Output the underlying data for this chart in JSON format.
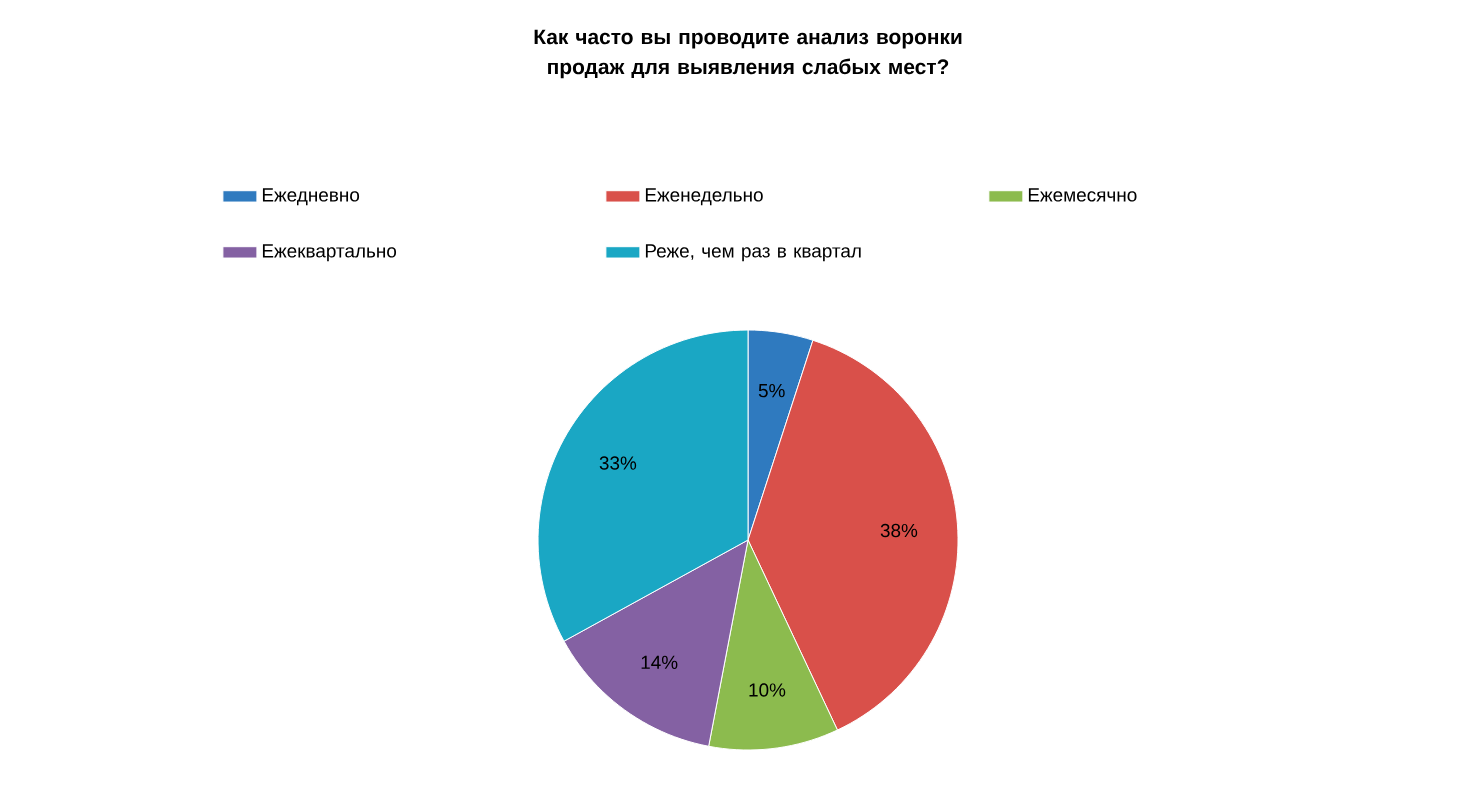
{
  "chart_data": {
    "type": "pie",
    "title": "Как часто вы проводите анализ воронки продаж для выявления слабых мест?",
    "categories": [
      "Ежедневно",
      "Еженедельно",
      "Ежемесячно",
      "Ежеквартально",
      "Реже, чем раз в квартал"
    ],
    "values": [
      5,
      38,
      10,
      14,
      33
    ],
    "value_labels": [
      "5%",
      "38%",
      "10%",
      "14%",
      "33%"
    ],
    "colors": [
      "#2f7abf",
      "#d9504a",
      "#8cbb4e",
      "#8461a3",
      "#1aa7c4"
    ],
    "legend": "top"
  }
}
